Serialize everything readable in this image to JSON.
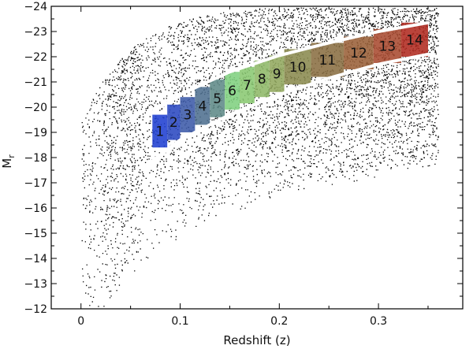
{
  "chart_data": {
    "type": "scatter",
    "xlabel": "Redshift (z)",
    "ylabel": "M",
    "ylabel_subscript": "r",
    "xlim": [
      -0.03,
      0.385
    ],
    "ylim": [
      -12,
      -24
    ],
    "y_inverted": true,
    "x_ticks": [
      0,
      0.1,
      0.2,
      0.3
    ],
    "x_tick_labels": [
      "0",
      "0.1",
      "0.2",
      "0.3"
    ],
    "y_ticks": [
      -12,
      -13,
      -14,
      -15,
      -16,
      -17,
      -18,
      -19,
      -20,
      -21,
      -22,
      -23,
      -24
    ],
    "y_tick_labels": [
      "−12",
      "−13",
      "−14",
      "−15",
      "−16",
      "−17",
      "−18",
      "−19",
      "−20",
      "−21",
      "−22",
      "−23",
      "−24"
    ],
    "grid": false,
    "scatter_color": "#000000",
    "selection_curves": {
      "color": "#ffffff",
      "upper": [
        [
          0.068,
          -19.7
        ],
        [
          0.1,
          -20.5
        ],
        [
          0.15,
          -21.4
        ],
        [
          0.2,
          -22.05
        ],
        [
          0.25,
          -22.55
        ],
        [
          0.3,
          -23.0
        ],
        [
          0.35,
          -23.35
        ]
      ],
      "lower": [
        [
          0.068,
          -17.75
        ],
        [
          0.1,
          -18.7
        ],
        [
          0.15,
          -19.7
        ],
        [
          0.2,
          -20.5
        ],
        [
          0.25,
          -21.15
        ],
        [
          0.3,
          -21.7
        ],
        [
          0.35,
          -22.1
        ]
      ]
    },
    "bins": [
      {
        "label": "1",
        "z_min": 0.072,
        "z_max": 0.087,
        "m_faint": -18.4,
        "m_bright": -19.7,
        "color": "#1f3fd0"
      },
      {
        "label": "2",
        "z_min": 0.087,
        "z_max": 0.1,
        "m_faint": -18.7,
        "m_bright": -20.1,
        "color": "#2a48c0"
      },
      {
        "label": "3",
        "z_min": 0.1,
        "z_max": 0.115,
        "m_faint": -19.0,
        "m_bright": -20.4,
        "color": "#3c5aa8"
      },
      {
        "label": "4",
        "z_min": 0.115,
        "z_max": 0.13,
        "m_faint": -19.3,
        "m_bright": -20.8,
        "color": "#4f7090"
      },
      {
        "label": "5",
        "z_min": 0.13,
        "z_max": 0.145,
        "m_faint": -19.6,
        "m_bright": -21.1,
        "color": "#5f8a88"
      },
      {
        "label": "6",
        "z_min": 0.145,
        "z_max": 0.16,
        "m_faint": -19.9,
        "m_bright": -21.4,
        "color": "#7fd07f"
      },
      {
        "label": "7",
        "z_min": 0.16,
        "z_max": 0.175,
        "m_faint": -20.15,
        "m_bright": -21.6,
        "color": "#8ac872"
      },
      {
        "label": "8",
        "z_min": 0.175,
        "z_max": 0.19,
        "m_faint": -20.4,
        "m_bright": -21.85,
        "color": "#8eb868"
      },
      {
        "label": "9",
        "z_min": 0.19,
        "z_max": 0.205,
        "m_faint": -20.6,
        "m_bright": -22.05,
        "color": "#92a85e"
      },
      {
        "label": "10",
        "z_min": 0.205,
        "z_max": 0.232,
        "m_faint": -20.9,
        "m_bright": -22.3,
        "color": "#8a8a4e"
      },
      {
        "label": "11",
        "z_min": 0.232,
        "z_max": 0.265,
        "m_faint": -21.2,
        "m_bright": -22.55,
        "color": "#8a6e42"
      },
      {
        "label": "12",
        "z_min": 0.265,
        "z_max": 0.295,
        "m_faint": -21.5,
        "m_bright": -22.8,
        "color": "#9a6038"
      },
      {
        "label": "13",
        "z_min": 0.295,
        "z_max": 0.323,
        "m_faint": -21.75,
        "m_bright": -23.1,
        "color": "#a84a30"
      },
      {
        "label": "14",
        "z_min": 0.323,
        "z_max": 0.35,
        "m_faint": -22.0,
        "m_bright": -23.35,
        "color": "#b02a20"
      }
    ]
  }
}
